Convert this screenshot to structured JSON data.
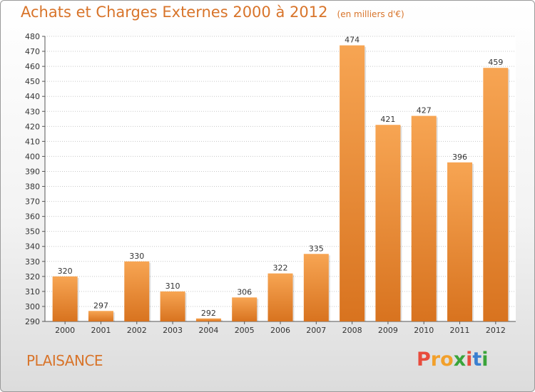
{
  "header": {
    "title": "Achats et Charges Externes 2000 à 2012",
    "subtitle": "(en milliers d'€)"
  },
  "footer": {
    "location": "PLAISANCE",
    "logo_letters": [
      "P",
      "r",
      "o",
      "x",
      "i",
      "t",
      "i"
    ],
    "logo_colors": [
      "#e84c3d",
      "#f2a02b",
      "#f2a02b",
      "#3aa43a",
      "#e84c3d",
      "#3a7fd0",
      "#3aa43a"
    ]
  },
  "colors": {
    "bar_light": "#f7a553",
    "bar_dark": "#d8731f",
    "grid": "#c8c8c8",
    "accent": "#d8742a"
  },
  "chart_data": {
    "type": "bar",
    "title": "Achats et Charges Externes 2000 à 2012",
    "subtitle": "(en milliers d'€)",
    "categories": [
      "2000",
      "2001",
      "2002",
      "2003",
      "2004",
      "2005",
      "2006",
      "2007",
      "2008",
      "2009",
      "2010",
      "2011",
      "2012"
    ],
    "values": [
      320,
      297,
      330,
      310,
      292,
      306,
      322,
      335,
      474,
      421,
      427,
      396,
      459
    ],
    "ylim": [
      290,
      480
    ],
    "ytick_step": 10,
    "grid": true,
    "xlabel": "",
    "ylabel": ""
  }
}
